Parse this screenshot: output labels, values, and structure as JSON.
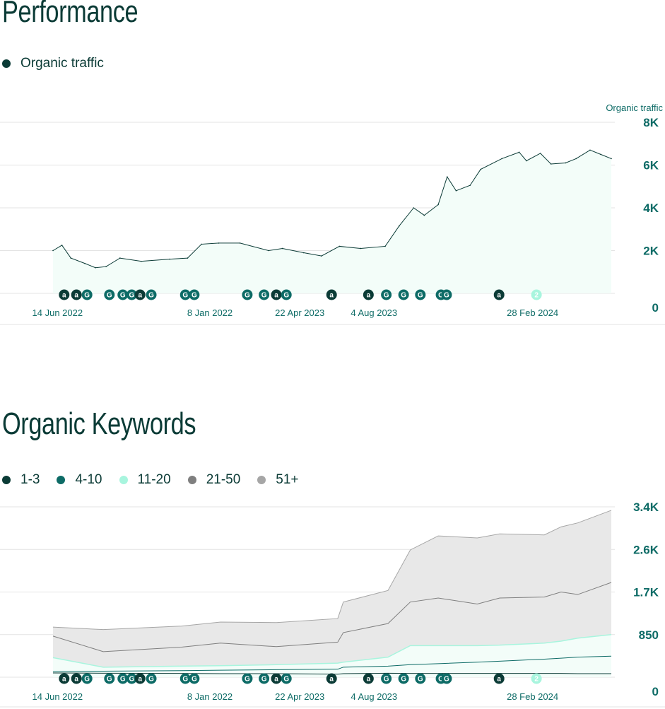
{
  "performance": {
    "title": "Performance",
    "legend": [
      {
        "label": "Organic traffic",
        "color": "#0b3b36"
      }
    ]
  },
  "keywords": {
    "title": "Organic Keywords",
    "legend": [
      {
        "label": "1-3",
        "color": "#0b3b36"
      },
      {
        "label": "4-10",
        "color": "#0d6b66"
      },
      {
        "label": "11-20",
        "color": "#a8f5de"
      },
      {
        "label": "21-50",
        "color": "#7f7f7f"
      },
      {
        "label": "51+",
        "color": "#a6a6a6"
      }
    ]
  },
  "chart_data": [
    {
      "type": "area",
      "title": "Performance",
      "ylabel": "Organic traffic",
      "ylim": [
        0,
        8000
      ],
      "yticks": [
        {
          "v": 0,
          "label": "0"
        },
        {
          "v": 2000,
          "label": "2K"
        },
        {
          "v": 4000,
          "label": "4K"
        },
        {
          "v": 6000,
          "label": "6K"
        },
        {
          "v": 8000,
          "label": "8K"
        }
      ],
      "xlim": [
        0,
        100
      ],
      "xticks": [
        {
          "v": 0.8,
          "label": "14 Jun 2022"
        },
        {
          "v": 28.1,
          "label": "8 Jan 2022"
        },
        {
          "v": 44.2,
          "label": "22 Apr 2023"
        },
        {
          "v": 57.5,
          "label": "4 Aug 2023"
        },
        {
          "v": 85.9,
          "label": "28 Feb 2024"
        }
      ],
      "grid": true,
      "series": [
        {
          "name": "Organic traffic",
          "x": [
            0,
            1.6,
            3.2,
            5.7,
            7.6,
            9.5,
            12,
            15.8,
            20.9,
            24.1,
            26.6,
            29.7,
            33.5,
            38.6,
            41.1,
            44.9,
            48.1,
            51.3,
            55.1,
            59.5,
            62,
            64.6,
            66.5,
            69,
            70.6,
            72.2,
            74.7,
            76.6,
            80.4,
            83.5,
            84.8,
            87.3,
            89.2,
            91.8,
            93.7,
            96.2,
            98.1,
            100
          ],
          "values": [
            2000,
            2250,
            1650,
            1400,
            1200,
            1250,
            1650,
            1500,
            1600,
            1650,
            2300,
            2350,
            2350,
            2000,
            2100,
            1900,
            1750,
            2200,
            2100,
            2200,
            3150,
            4000,
            3650,
            4150,
            5450,
            4800,
            5050,
            5800,
            6300,
            6600,
            6200,
            6550,
            6050,
            6100,
            6300,
            6700,
            6500,
            6300
          ]
        }
      ]
    },
    {
      "type": "area",
      "stacked": true,
      "title": "Organic Keywords",
      "ylim": [
        0,
        3400
      ],
      "yticks": [
        {
          "v": 0,
          "label": "0"
        },
        {
          "v": 850,
          "label": "850"
        },
        {
          "v": 1700,
          "label": "1.7K"
        },
        {
          "v": 2550,
          "label": "2.6K"
        },
        {
          "v": 3400,
          "label": "3.4K"
        }
      ],
      "xlim": [
        0,
        100
      ],
      "xticks": [
        {
          "v": 0.8,
          "label": "14 Jun 2022"
        },
        {
          "v": 28.1,
          "label": "8 Jan 2022"
        },
        {
          "v": 44.2,
          "label": "22 Apr 2023"
        },
        {
          "v": 57.5,
          "label": "4 Aug 2023"
        },
        {
          "v": 85.9,
          "label": "28 Feb 2024"
        }
      ],
      "grid": true,
      "x": [
        0,
        9,
        23,
        30,
        40,
        51,
        52,
        60,
        64,
        69,
        76,
        80,
        88,
        91,
        94,
        100
      ],
      "series": [
        {
          "name": "1-3",
          "values": [
            85,
            80,
            75,
            70,
            70,
            60,
            70,
            80,
            75,
            75,
            75,
            75,
            75,
            75,
            70,
            70
          ]
        },
        {
          "name": "4-10",
          "values": [
            25,
            40,
            55,
            70,
            80,
            100,
            130,
            140,
            175,
            195,
            225,
            245,
            285,
            305,
            330,
            350
          ]
        },
        {
          "name": "11-20",
          "values": [
            280,
            80,
            90,
            90,
            100,
            120,
            100,
            180,
            380,
            360,
            330,
            320,
            320,
            340,
            380,
            430
          ]
        },
        {
          "name": "21-50",
          "values": [
            430,
            310,
            380,
            450,
            360,
            420,
            590,
            670,
            870,
            950,
            830,
            940,
            920,
            980,
            870,
            1040
          ]
        },
        {
          "name": "51+",
          "values": [
            180,
            440,
            420,
            420,
            480,
            470,
            610,
            660,
            1040,
            1240,
            1320,
            1280,
            1240,
            1300,
            1430,
            1440
          ]
        }
      ]
    }
  ],
  "markers": [
    {
      "x": 2.0,
      "label": "a",
      "kind": "a"
    },
    {
      "x": 4.2,
      "label": "a",
      "kind": "a"
    },
    {
      "x": 6.1,
      "label": "G",
      "kind": "G"
    },
    {
      "x": 10.1,
      "label": "G",
      "kind": "G"
    },
    {
      "x": 12.5,
      "label": "G",
      "kind": "G"
    },
    {
      "x": 14.1,
      "label": "G",
      "kind": "G"
    },
    {
      "x": 15.6,
      "label": "a",
      "kind": "a"
    },
    {
      "x": 17.6,
      "label": "G",
      "kind": "G"
    },
    {
      "x": 23.7,
      "label": "G",
      "kind": "G"
    },
    {
      "x": 25.3,
      "label": "G",
      "kind": "G"
    },
    {
      "x": 34.8,
      "label": "G",
      "kind": "G"
    },
    {
      "x": 37.8,
      "label": "G",
      "kind": "G"
    },
    {
      "x": 40.0,
      "label": "a",
      "kind": "a"
    },
    {
      "x": 41.8,
      "label": "G",
      "kind": "G"
    },
    {
      "x": 49.9,
      "label": "a",
      "kind": "a"
    },
    {
      "x": 56.5,
      "label": "a",
      "kind": "a"
    },
    {
      "x": 59.7,
      "label": "G",
      "kind": "G"
    },
    {
      "x": 62.8,
      "label": "G",
      "kind": "G"
    },
    {
      "x": 65.8,
      "label": "G",
      "kind": "G"
    },
    {
      "x": 69.5,
      "label": "G",
      "kind": "G"
    },
    {
      "x": 70.5,
      "label": "G",
      "kind": "G"
    },
    {
      "x": 79.9,
      "label": "a",
      "kind": "a"
    },
    {
      "x": 86.6,
      "label": "2",
      "kind": "n"
    }
  ],
  "colors": {
    "dark": "#0b3b36",
    "teal": "#0d6b66",
    "mint": "#a8f5de",
    "gray": "#7f7f7f",
    "lightgray": "#a6a6a6",
    "fill": "#f3fdf9",
    "area": "#e8e8e8",
    "grid": "#e3e3e3"
  }
}
